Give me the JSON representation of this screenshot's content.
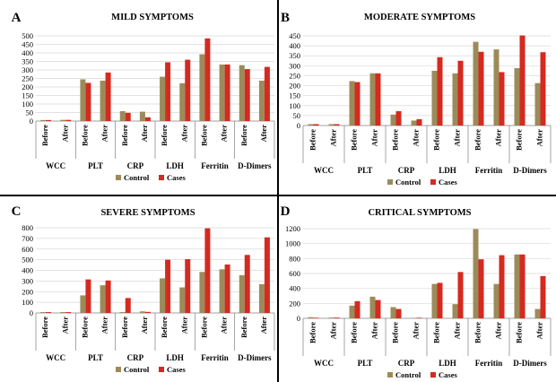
{
  "colors": {
    "control": "#9C8B5A",
    "cases": "#D42A20",
    "grid": "#D9D9D9",
    "axis": "#808080",
    "divider": "#222222"
  },
  "chart_data": [
    {
      "type": "bar",
      "panel_letter": "A",
      "title": "MILD SYMPTOMS",
      "ylim": [
        0,
        500
      ],
      "yticks": [
        0,
        50,
        100,
        150,
        200,
        250,
        300,
        350,
        400,
        450,
        500
      ],
      "grid": true,
      "legend_position": "bottom",
      "groups": [
        "WCC",
        "PLT",
        "CRP",
        "LDH",
        "Ferritin",
        "D-Dimers"
      ],
      "categories": [
        "Before",
        "After",
        "Before",
        "After",
        "Before",
        "After",
        "Before",
        "After",
        "Before",
        "After",
        "Before",
        "After"
      ],
      "series": [
        {
          "name": "Control",
          "values": [
            6,
            7,
            245,
            237,
            58,
            55,
            260,
            222,
            392,
            332,
            328,
            237
          ]
        },
        {
          "name": "Cases",
          "values": [
            6,
            7,
            224,
            285,
            48,
            22,
            345,
            360,
            485,
            332,
            305,
            318
          ]
        }
      ]
    },
    {
      "type": "bar",
      "panel_letter": "B",
      "title": "MODERATE SYMPTOMS",
      "ylim": [
        0,
        450
      ],
      "yticks": [
        0,
        50,
        100,
        150,
        200,
        250,
        300,
        350,
        400,
        450
      ],
      "grid": true,
      "legend_position": "bottom",
      "groups": [
        "WCC",
        "PLT",
        "CRP",
        "LDH",
        "Ferritin",
        "D-Dimers"
      ],
      "categories": [
        "Before",
        "After",
        "Before",
        "After",
        "Before",
        "After",
        "Before",
        "After",
        "Before",
        "After",
        "Before",
        "After"
      ],
      "series": [
        {
          "name": "Control",
          "values": [
            7,
            7,
            223,
            262,
            55,
            25,
            275,
            262,
            420,
            382,
            288,
            213
          ]
        },
        {
          "name": "Cases",
          "values": [
            7,
            7,
            218,
            262,
            72,
            32,
            343,
            325,
            370,
            268,
            452,
            368
          ]
        }
      ]
    },
    {
      "type": "bar",
      "panel_letter": "C",
      "title": "SEVERE SYMPTOMS",
      "ylim": [
        0,
        800
      ],
      "yticks": [
        0,
        100,
        200,
        300,
        400,
        500,
        600,
        700,
        800
      ],
      "grid": true,
      "legend_position": "bottom",
      "groups": [
        "WCC",
        "PLT",
        "CRP",
        "LDH",
        "Ferritin",
        "D-Dimers"
      ],
      "categories": [
        "Before",
        "After",
        "Before",
        "After",
        "Before",
        "After",
        "Before",
        "After",
        "Before",
        "After",
        "Before",
        "After"
      ],
      "series": [
        {
          "name": "Control",
          "values": [
            8,
            8,
            165,
            260,
            8,
            15,
            325,
            240,
            385,
            410,
            355,
            270
          ]
        },
        {
          "name": "Cases",
          "values": [
            8,
            8,
            315,
            305,
            140,
            10,
            500,
            505,
            795,
            455,
            545,
            710
          ]
        }
      ]
    },
    {
      "type": "bar",
      "panel_letter": "D",
      "title": "CRITICAL SYMPTOMS",
      "ylim": [
        0,
        1200
      ],
      "yticks": [
        0,
        200,
        400,
        600,
        800,
        1000,
        1200
      ],
      "grid": true,
      "legend_position": "bottom",
      "groups": [
        "WCC",
        "PLT",
        "CRP",
        "LDH",
        "Ferritin",
        "D-Dimers"
      ],
      "categories": [
        "Before",
        "After",
        "Before",
        "After",
        "Before",
        "After",
        "Before",
        "After",
        "Before",
        "After",
        "Before",
        "After"
      ],
      "series": [
        {
          "name": "Control",
          "values": [
            15,
            10,
            170,
            290,
            150,
            5,
            460,
            190,
            1195,
            460,
            855,
            125
          ]
        },
        {
          "name": "Cases",
          "values": [
            8,
            10,
            230,
            245,
            125,
            8,
            475,
            620,
            790,
            845,
            855,
            565
          ]
        }
      ]
    }
  ]
}
